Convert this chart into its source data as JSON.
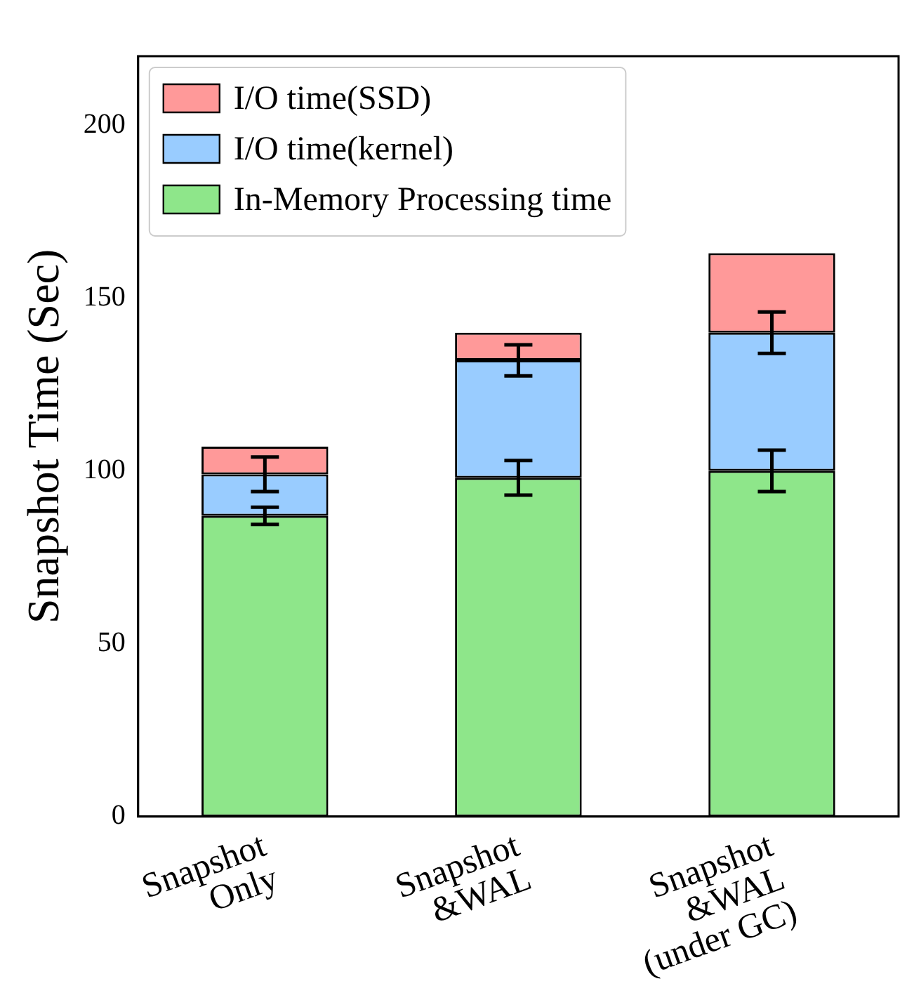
{
  "chart_data": {
    "type": "bar",
    "stacked": true,
    "ylabel": "Snapshot Time (Sec)",
    "categories": [
      "Snapshot\nOnly",
      "Snapshot\n&WAL",
      "Snapshot\n&WAL\n(under GC)"
    ],
    "series": [
      {
        "name": "In-Memory Processing time",
        "color": "#8ee68a",
        "values": [
          87,
          98,
          100
        ],
        "errors": [
          2.5,
          5,
          6
        ]
      },
      {
        "name": "I/O time(kernel)",
        "color": "#99ccff",
        "values": [
          12,
          34,
          40
        ],
        "errors": [
          5,
          4.5,
          6
        ]
      },
      {
        "name": "I/O time(SSD)",
        "color": "#ff9999",
        "values": [
          8,
          8,
          23
        ]
      }
    ],
    "ylim": [
      0,
      220
    ],
    "yticks": [
      0,
      50,
      100,
      150,
      200
    ],
    "grid": false,
    "legend": "top left"
  }
}
